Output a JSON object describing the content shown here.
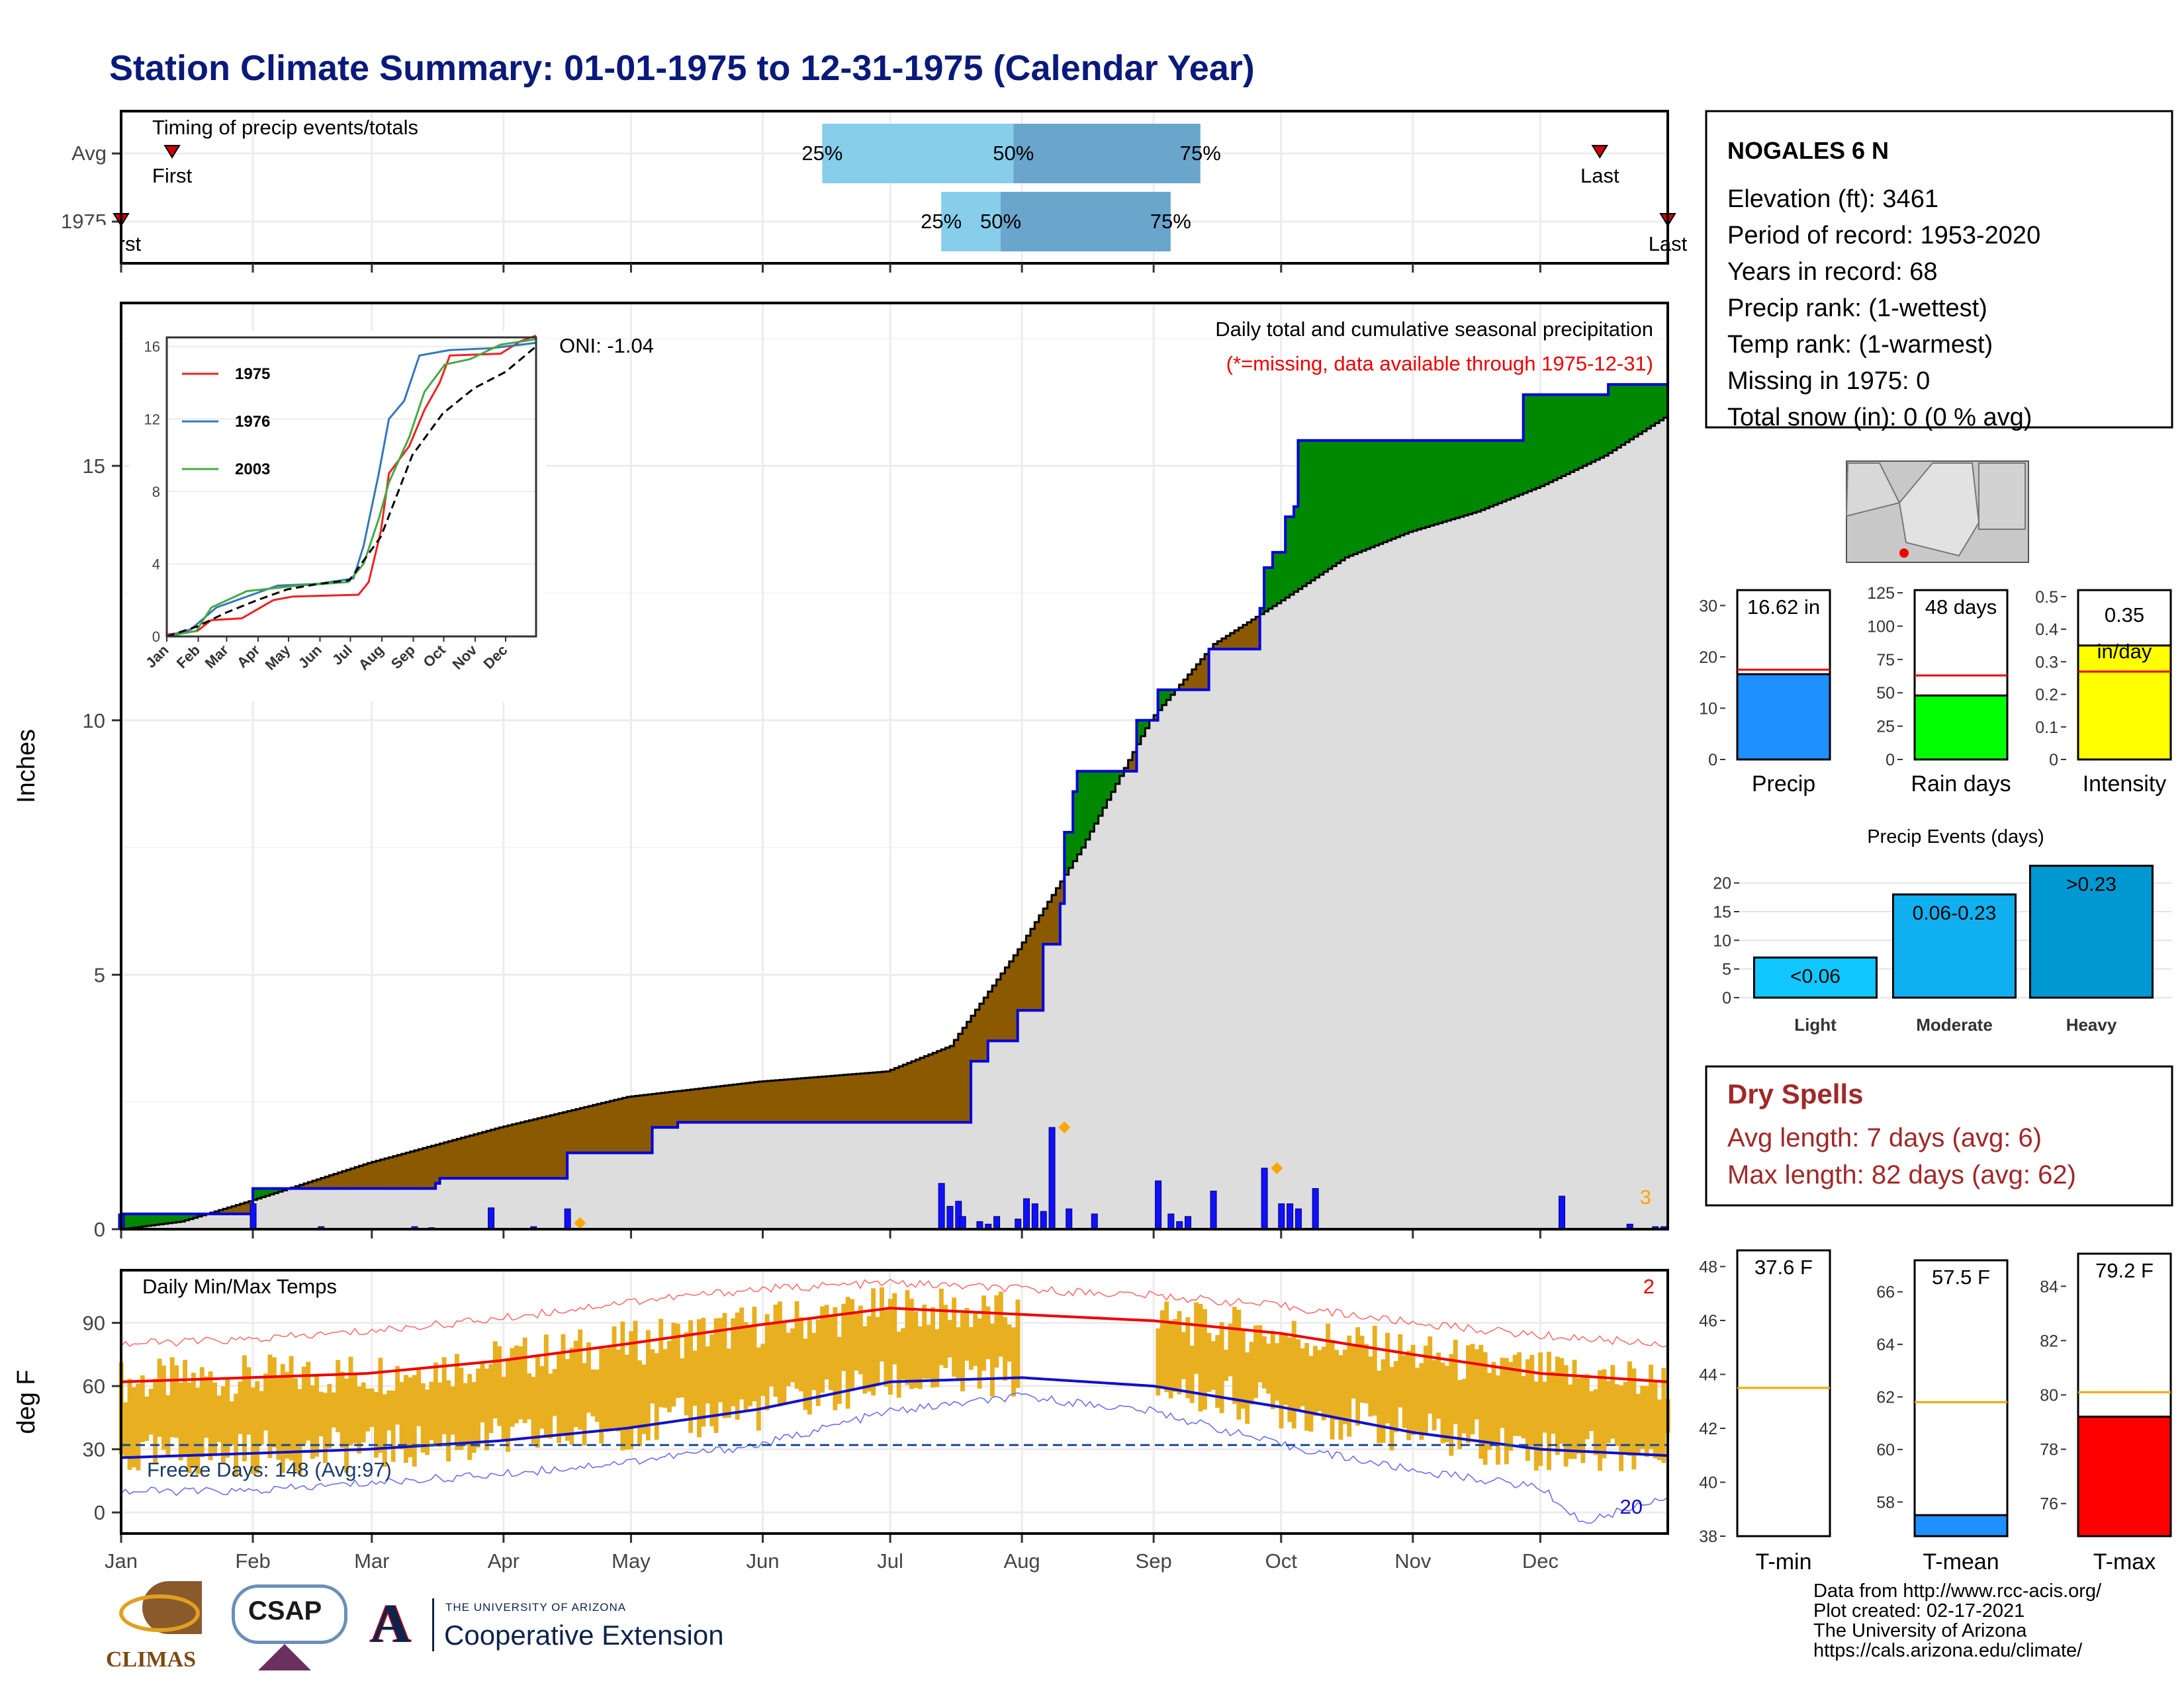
{
  "title": "Station Climate Summary: 01-01-1975 to 12-31-1975 (Calendar Year)",
  "station": {
    "name": "NOGALES 6 N",
    "lines": [
      "Elevation (ft): 3461",
      "Period of record: 1953-2020",
      "Years in record: 68",
      "Precip rank:  (1-wettest)",
      "Temp rank:  (1-warmest)",
      "Missing in 1975: 0",
      "Total snow (in): 0 (0 % avg)"
    ]
  },
  "credits": [
    "Data from http://www.rcc-acis.org/",
    "Plot created: 02-17-2021",
    "The University of Arizona",
    "https://cals.arizona.edu/climate/"
  ],
  "logos": {
    "climas": "CLIMAS",
    "csap": "CSAP",
    "ua_small": "THE UNIVERSITY OF ARIZONA",
    "ua_big": "Cooperative Extension",
    "ua_letter": "A"
  },
  "colors": {
    "title": "#0a1a7a",
    "deficit": "#8b5a00",
    "surplus": "#008800",
    "cumulative_line": "#0000dd",
    "normal_fill": "#dddddd",
    "daily_bar": "#1010ff",
    "temp_bar": "#e8b020",
    "tmax_avg": "#ee0000",
    "tmin_avg": "#1010cc",
    "timing_light": "#87ceeb",
    "timing_dark": "#6aa5cc",
    "dry_spell": "#a02828"
  },
  "chart_data": [
    {
      "id": "timing",
      "type": "bar",
      "title": "Timing of precip events/totals",
      "categories": [
        "Avg",
        "1975"
      ],
      "rows": [
        {
          "label": "Avg",
          "first_day": 13,
          "q25_day": 166,
          "q50_day": 211,
          "q75_day": 255,
          "last_day": 349,
          "first_label": "First",
          "last_label": "Last"
        },
        {
          "label": "1975",
          "first_day": 1,
          "q25_day": 194,
          "q50_day": 208,
          "q75_day": 248,
          "last_day": 365,
          "first_label": "First",
          "last_label": "Last"
        }
      ],
      "quartile_labels": [
        "25%",
        "50%",
        "75%"
      ]
    },
    {
      "id": "cumulative_precip",
      "type": "area",
      "title": "Daily total and cumulative seasonal precipitation",
      "subtitle": "(*=missing, data available through 1975-12-31)",
      "ylabel": "Inches",
      "ylim": [
        0,
        18.2
      ],
      "yticks": [
        0,
        5,
        10,
        15
      ],
      "annotation": "ONI: -1.04",
      "corner_label": "3",
      "cumulative_1975": [
        [
          1,
          0.3
        ],
        [
          31,
          0.3
        ],
        [
          32,
          0.8
        ],
        [
          75,
          0.9
        ],
        [
          76,
          1.0
        ],
        [
          105,
          1.0
        ],
        [
          106,
          1.5
        ],
        [
          125,
          1.5
        ],
        [
          126,
          2.0
        ],
        [
          132,
          2.1
        ],
        [
          200,
          2.1
        ],
        [
          201,
          3.3
        ],
        [
          205,
          3.7
        ],
        [
          212,
          4.3
        ],
        [
          218,
          5.6
        ],
        [
          222,
          6.4
        ],
        [
          223,
          7.8
        ],
        [
          225,
          8.6
        ],
        [
          226,
          9.0
        ],
        [
          239,
          9.0
        ],
        [
          240,
          10.0
        ],
        [
          245,
          10.6
        ],
        [
          255,
          10.6
        ],
        [
          257,
          11.4
        ],
        [
          268,
          11.4
        ],
        [
          269,
          12.2
        ],
        [
          270,
          13.0
        ],
        [
          272,
          13.3
        ],
        [
          275,
          14.0
        ],
        [
          277,
          14.2
        ],
        [
          278,
          15.5
        ],
        [
          330,
          15.5
        ],
        [
          331,
          16.4
        ],
        [
          350,
          16.4
        ],
        [
          351,
          16.6
        ],
        [
          365,
          16.6
        ]
      ],
      "normal_cumulative": [
        [
          1,
          0.0
        ],
        [
          15,
          0.15
        ],
        [
          31,
          0.55
        ],
        [
          59,
          1.3
        ],
        [
          90,
          2.0
        ],
        [
          120,
          2.6
        ],
        [
          151,
          2.9
        ],
        [
          181,
          3.1
        ],
        [
          196,
          3.6
        ],
        [
          212,
          5.5
        ],
        [
          227,
          7.5
        ],
        [
          243,
          10.0
        ],
        [
          258,
          11.5
        ],
        [
          273,
          12.3
        ],
        [
          289,
          13.2
        ],
        [
          304,
          13.7
        ],
        [
          320,
          14.1
        ],
        [
          335,
          14.6
        ],
        [
          350,
          15.2
        ],
        [
          365,
          16.0
        ]
      ],
      "daily_bars": [
        [
          1,
          0.3
        ],
        [
          32,
          0.5
        ],
        [
          48,
          0.05
        ],
        [
          70,
          0.05
        ],
        [
          74,
          0.03
        ],
        [
          88,
          0.42
        ],
        [
          98,
          0.05
        ],
        [
          106,
          0.4
        ],
        [
          194,
          0.9
        ],
        [
          196,
          0.45
        ],
        [
          198,
          0.55
        ],
        [
          199,
          0.25
        ],
        [
          203,
          0.15
        ],
        [
          205,
          0.1
        ],
        [
          207,
          0.25
        ],
        [
          212,
          0.2
        ],
        [
          214,
          0.6
        ],
        [
          216,
          0.5
        ],
        [
          218,
          0.35
        ],
        [
          220,
          2.0
        ],
        [
          224,
          0.4
        ],
        [
          230,
          0.3
        ],
        [
          245,
          0.95
        ],
        [
          248,
          0.3
        ],
        [
          250,
          0.15
        ],
        [
          252,
          0.25
        ],
        [
          258,
          0.75
        ],
        [
          270,
          1.2
        ],
        [
          274,
          0.5
        ],
        [
          276,
          0.5
        ],
        [
          278,
          0.4
        ],
        [
          282,
          0.8
        ],
        [
          340,
          0.65
        ],
        [
          356,
          0.1
        ],
        [
          362,
          0.05
        ],
        [
          364,
          0.05
        ]
      ],
      "record_markers": [
        [
          109,
          0.12
        ],
        [
          223,
          2.0
        ],
        [
          273,
          1.2
        ]
      ]
    },
    {
      "id": "inset_years",
      "type": "line",
      "ylim": [
        0,
        16.5
      ],
      "yticks": [
        0,
        4,
        8,
        12,
        16
      ],
      "xticks": [
        "Jan",
        "Feb",
        "Mar",
        "Apr",
        "May",
        "Jun",
        "Jul",
        "Aug",
        "Sep",
        "Oct",
        "Nov",
        "Dec"
      ],
      "series": [
        {
          "name": "1975",
          "color": "#ee2222",
          "points": [
            [
              1,
              0.1
            ],
            [
              31,
              0.3
            ],
            [
              45,
              0.9
            ],
            [
              75,
              1.0
            ],
            [
              106,
              2.0
            ],
            [
              125,
              2.2
            ],
            [
              190,
              2.3
            ],
            [
              200,
              3.0
            ],
            [
              212,
              5.8
            ],
            [
              220,
              9.0
            ],
            [
              240,
              10.5
            ],
            [
              255,
              12.5
            ],
            [
              270,
              14.0
            ],
            [
              280,
              15.5
            ],
            [
              330,
              15.6
            ],
            [
              350,
              16.3
            ],
            [
              365,
              16.6
            ]
          ]
        },
        {
          "name": "1976",
          "color": "#3377bb",
          "points": [
            [
              1,
              0.0
            ],
            [
              25,
              0.4
            ],
            [
              50,
              1.6
            ],
            [
              80,
              2.2
            ],
            [
              110,
              2.8
            ],
            [
              150,
              2.9
            ],
            [
              185,
              3.2
            ],
            [
              195,
              5.0
            ],
            [
              210,
              9.0
            ],
            [
              220,
              12.0
            ],
            [
              235,
              13.0
            ],
            [
              250,
              15.5
            ],
            [
              280,
              15.8
            ],
            [
              320,
              15.9
            ],
            [
              365,
              16.2
            ]
          ]
        },
        {
          "name": "2003",
          "color": "#44aa44",
          "points": [
            [
              1,
              0.0
            ],
            [
              30,
              0.3
            ],
            [
              45,
              1.6
            ],
            [
              80,
              2.5
            ],
            [
              130,
              2.8
            ],
            [
              180,
              3.0
            ],
            [
              195,
              4.0
            ],
            [
              210,
              6.5
            ],
            [
              220,
              8.5
            ],
            [
              240,
              11.0
            ],
            [
              255,
              13.5
            ],
            [
              275,
              15.0
            ],
            [
              300,
              15.3
            ],
            [
              330,
              16.1
            ],
            [
              365,
              16.4
            ]
          ]
        },
        {
          "name": "",
          "color": "#000000",
          "dashed": true,
          "points": [
            [
              1,
              0.0
            ],
            [
              31,
              0.55
            ],
            [
              59,
              1.3
            ],
            [
              90,
              2.0
            ],
            [
              120,
              2.6
            ],
            [
              151,
              2.9
            ],
            [
              181,
              3.1
            ],
            [
              212,
              5.5
            ],
            [
              243,
              10.0
            ],
            [
              273,
              12.3
            ],
            [
              304,
              13.7
            ],
            [
              335,
              14.6
            ],
            [
              365,
              16.0
            ]
          ]
        }
      ]
    },
    {
      "id": "temps",
      "type": "bar",
      "title": "Daily Min/Max Temps",
      "ylabel": "deg F",
      "ylim": [
        -10,
        115
      ],
      "yticks": [
        0,
        30,
        60,
        90
      ],
      "freeze_label": "Freeze Days: 148 (Avg:97)",
      "freeze_line": 32,
      "corner_top": "2",
      "corner_bottom": "20",
      "missing_range": [
        213,
        244
      ],
      "tmax_avg": [
        [
          1,
          62
        ],
        [
          31,
          64
        ],
        [
          59,
          66
        ],
        [
          90,
          72
        ],
        [
          120,
          80
        ],
        [
          151,
          89
        ],
        [
          182,
          97
        ],
        [
          213,
          94
        ],
        [
          244,
          91
        ],
        [
          274,
          85
        ],
        [
          305,
          75
        ],
        [
          335,
          66
        ],
        [
          365,
          62
        ]
      ],
      "tmin_avg": [
        [
          1,
          26
        ],
        [
          31,
          28
        ],
        [
          59,
          30
        ],
        [
          90,
          34
        ],
        [
          120,
          40
        ],
        [
          151,
          49
        ],
        [
          182,
          62
        ],
        [
          213,
          64
        ],
        [
          244,
          60
        ],
        [
          274,
          50
        ],
        [
          305,
          38
        ],
        [
          335,
          30
        ],
        [
          365,
          27
        ]
      ],
      "tmax_record": [
        [
          1,
          80
        ],
        [
          31,
          82
        ],
        [
          59,
          86
        ],
        [
          90,
          92
        ],
        [
          120,
          100
        ],
        [
          151,
          106
        ],
        [
          182,
          109
        ],
        [
          213,
          106
        ],
        [
          244,
          103
        ],
        [
          274,
          98
        ],
        [
          305,
          90
        ],
        [
          335,
          84
        ],
        [
          365,
          80
        ]
      ],
      "tmin_record": [
        [
          1,
          10
        ],
        [
          31,
          10
        ],
        [
          59,
          14
        ],
        [
          90,
          18
        ],
        [
          120,
          24
        ],
        [
          151,
          32
        ],
        [
          182,
          48
        ],
        [
          213,
          55
        ],
        [
          244,
          48
        ],
        [
          274,
          32
        ],
        [
          305,
          20
        ],
        [
          335,
          12
        ],
        [
          345,
          -5
        ],
        [
          365,
          8
        ]
      ]
    },
    {
      "id": "summary_precip",
      "type": "bar",
      "panels": [
        {
          "label": "Precip",
          "value_label": "16.62 in",
          "value": 16.62,
          "avg": 17.5,
          "ymax": 33,
          "yticks": [
            0,
            10,
            20,
            30
          ],
          "color": "#1e90ff"
        },
        {
          "label": "Rain days",
          "value_label": "48 days",
          "value": 48,
          "avg": 63,
          "ymax": 127,
          "yticks": [
            0,
            25,
            50,
            75,
            100,
            125
          ],
          "color": "#00ff00"
        },
        {
          "label": "Intensity",
          "value_label": "0.35 in/day",
          "value": 0.35,
          "avg": 0.27,
          "ymax": 0.52,
          "yticks": [
            0.0,
            0.1,
            0.2,
            0.3,
            0.4,
            0.5
          ],
          "color": "#ffff00"
        }
      ]
    },
    {
      "id": "precip_events",
      "type": "bar",
      "title": "Precip Events (days)",
      "categories": [
        "Light",
        "Moderate",
        "Heavy"
      ],
      "values": [
        7,
        18,
        23
      ],
      "bar_labels": [
        "<0.06",
        "0.06-0.23",
        ">0.23"
      ],
      "colors": [
        "#10c8ff",
        "#10b0f0",
        "#0098d0"
      ],
      "yticks": [
        0,
        5,
        10,
        15,
        20
      ],
      "ylim": [
        0,
        24
      ]
    },
    {
      "id": "dry_spells",
      "type": "table",
      "title": "Dry Spells",
      "lines": [
        "Avg length: 7 days (avg: 6)",
        "Max length: 82 days (avg: 62)"
      ]
    },
    {
      "id": "summary_temps",
      "type": "bar",
      "panels": [
        {
          "label": "T-min",
          "value_label": "37.6 F",
          "value": 37.6,
          "avg": 43.5,
          "ymin": 38,
          "ymax": 48.6,
          "yticks": [
            38,
            40,
            42,
            44,
            46,
            48
          ],
          "color": "#1e90ff"
        },
        {
          "label": "T-mean",
          "value_label": "57.5 F",
          "value": 57.5,
          "avg": 61.8,
          "ymin": 56.7,
          "ymax": 67.2,
          "yticks": [
            58,
            60,
            62,
            64,
            66
          ],
          "color": "#1e90ff"
        },
        {
          "label": "T-max",
          "value_label": "79.2 F",
          "value": 79.2,
          "avg": 80.1,
          "ymin": 74.8,
          "ymax": 85.2,
          "yticks": [
            76,
            78,
            80,
            82,
            84
          ],
          "color": "#ff0000"
        }
      ]
    }
  ]
}
